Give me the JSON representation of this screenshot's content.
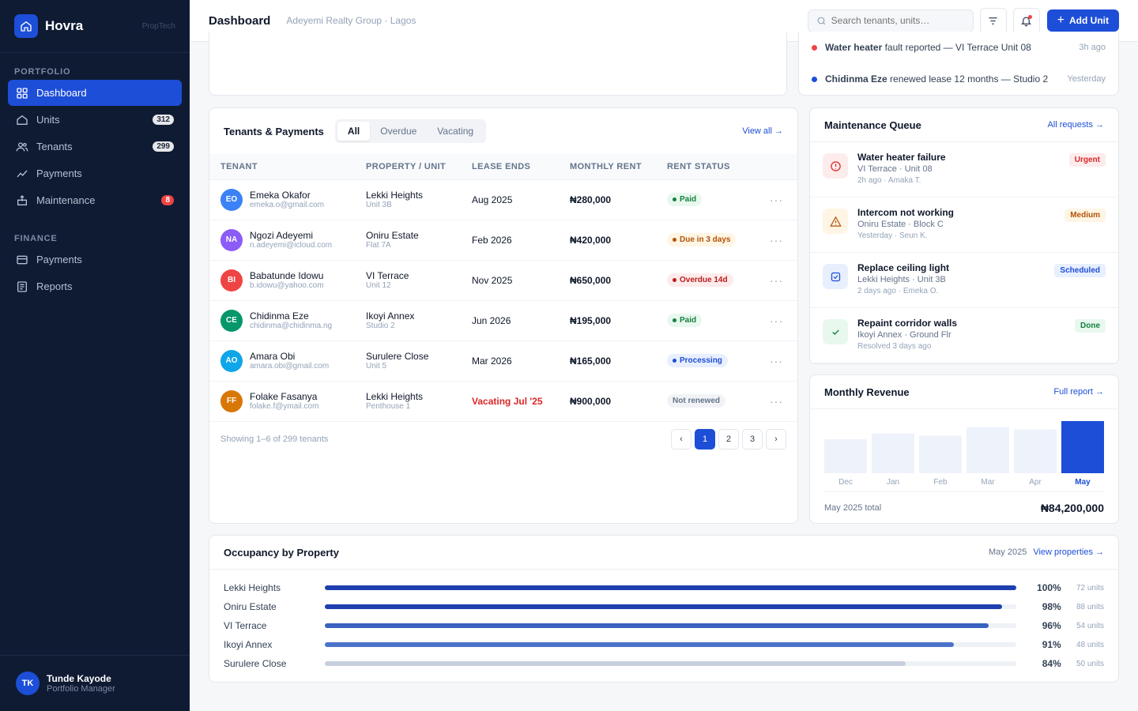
{
  "brand": {
    "name": "Hovra",
    "tag": "PropTech"
  },
  "nav": {
    "portfolio_label": "PORTFOLIO",
    "portfolio": [
      {
        "label": "Dashboard",
        "icon": "grid-icon",
        "badge": ""
      },
      {
        "label": "Units",
        "icon": "home-icon",
        "badge": "312"
      },
      {
        "label": "Tenants",
        "icon": "users-icon",
        "badge": "299"
      },
      {
        "label": "Payments",
        "icon": "trend-icon",
        "badge": ""
      },
      {
        "label": "Maintenance",
        "icon": "toolbox-icon",
        "badge": "8"
      }
    ],
    "finance_label": "FINANCE",
    "finance": [
      {
        "label": "Payments",
        "icon": "card-icon"
      },
      {
        "label": "Reports",
        "icon": "report-icon"
      }
    ]
  },
  "user": {
    "initials": "TK",
    "name": "Tunde Kayode",
    "role": "Portfolio Manager"
  },
  "header": {
    "title": "Dashboard",
    "subtitle": "Adeyemi Realty Group · Lagos",
    "search_placeholder": "Search tenants, units…",
    "add_label": "Add Unit"
  },
  "activity": [
    {
      "bold": "Water heater",
      "text": " fault reported — VI Terrace Unit 08",
      "time": "3h ago",
      "color": "#ef4444"
    },
    {
      "bold": "Chidinma Eze",
      "text": " renewed lease 12 months — Studio 2",
      "time": "Yesterday",
      "color": "#1d4ed8"
    }
  ],
  "tenants": {
    "title": "Tenants & Payments",
    "tabs": [
      "All",
      "Overdue",
      "Vacating"
    ],
    "view_all": "View all →",
    "columns": [
      "TENANT",
      "PROPERTY / UNIT",
      "LEASE ENDS",
      "MONTHLY RENT",
      "RENT STATUS"
    ],
    "rows": [
      {
        "initials": "EO",
        "color": "#3b82f6",
        "name": "Emeka Okafor",
        "email": "emeka.o@gmail.com",
        "property": "Lekki Heights",
        "unit": "Unit 3B",
        "lease": "Aug 2025",
        "rent": "₦280,000",
        "status": "Paid",
        "status_type": "paid"
      },
      {
        "initials": "NA",
        "color": "#8b5cf6",
        "name": "Ngozi Adeyemi",
        "email": "n.adeyemi@icloud.com",
        "property": "Oniru Estate",
        "unit": "Flat 7A",
        "lease": "Feb 2026",
        "rent": "₦420,000",
        "status": "Due in 3 days",
        "status_type": "due"
      },
      {
        "initials": "BI",
        "color": "#ef4444",
        "name": "Babatunde Idowu",
        "email": "b.idowu@yahoo.com",
        "property": "VI Terrace",
        "unit": "Unit 12",
        "lease": "Nov 2025",
        "rent": "₦650,000",
        "status": "Overdue 14d",
        "status_type": "over"
      },
      {
        "initials": "CE",
        "color": "#059669",
        "name": "Chidinma Eze",
        "email": "chidinma@chidinma.ng",
        "property": "Ikoyi Annex",
        "unit": "Studio 2",
        "lease": "Jun 2026",
        "rent": "₦195,000",
        "status": "Paid",
        "status_type": "paid"
      },
      {
        "initials": "AO",
        "color": "#0ea5e9",
        "name": "Amara Obi",
        "email": "amara.obi@gmail.com",
        "property": "Surulere Close",
        "unit": "Unit 5",
        "lease": "Mar 2026",
        "rent": "₦165,000",
        "status": "Processing",
        "status_type": "proc"
      },
      {
        "initials": "FF",
        "color": "#d97706",
        "name": "Folake Fasanya",
        "email": "folake.f@ymail.com",
        "property": "Lekki Heights",
        "unit": "Penthouse 1",
        "lease": "Vacating Jul '25",
        "rent": "₦900,000",
        "status": "Not renewed",
        "status_type": "not"
      }
    ],
    "showing": "Showing 1–6 of 299 tenants",
    "pages": [
      "‹",
      "1",
      "2",
      "3",
      "›"
    ]
  },
  "maintenance": {
    "title": "Maintenance Queue",
    "link": "All requests →",
    "items": [
      {
        "title": "Water heater failure",
        "sub": "VI Terrace · Unit 08",
        "meta": "2h ago · Amaka T.",
        "badge": "Urgent",
        "icon": "alert-circle-icon",
        "fg": "#dc2626",
        "bg": "#fdecec"
      },
      {
        "title": "Intercom not working",
        "sub": "Oniru Estate · Block C",
        "meta": "Yesterday · Seun K.",
        "badge": "Medium",
        "icon": "warning-icon",
        "fg": "#b45309",
        "bg": "#fef5e4"
      },
      {
        "title": "Replace ceiling light",
        "sub": "Lekki Heights · Unit 3B",
        "meta": "2 days ago · Emeka O.",
        "badge": "Scheduled",
        "icon": "check-square-icon",
        "fg": "#1d4ed8",
        "bg": "#e8effe"
      },
      {
        "title": "Repaint corridor walls",
        "sub": "Ikoyi Annex · Ground Flr",
        "meta": "Resolved 3 days ago",
        "badge": "Done",
        "icon": "check-icon",
        "fg": "#15803d",
        "bg": "#e9f8ef"
      }
    ]
  },
  "revenue": {
    "title": "Monthly Revenue",
    "link": "Full report →",
    "total_label": "May 2025 total",
    "total_value": "₦84,200,000"
  },
  "chart_data": {
    "type": "bar",
    "categories": [
      "Dec",
      "Jan",
      "Feb",
      "Mar",
      "Apr",
      "May"
    ],
    "values": [
      0.65,
      0.76,
      0.72,
      0.88,
      0.84,
      1.0
    ],
    "highlight": "May",
    "colors": {
      "base": "#eef2fb",
      "highlight": "#1d4ed8"
    }
  },
  "occupancy": {
    "title": "Occupancy by Property",
    "period": "May 2025",
    "link": "View properties →",
    "rows": [
      {
        "name": "Lekki Heights",
        "pct": 100,
        "label": "100%",
        "units": "72 units",
        "color": "#1e40af"
      },
      {
        "name": "Oniru Estate",
        "pct": 98,
        "label": "98%",
        "units": "88 units",
        "color": "#1e40af"
      },
      {
        "name": "VI Terrace",
        "pct": 96,
        "label": "96%",
        "units": "54 units",
        "color": "#3a62bf"
      },
      {
        "name": "Ikoyi Annex",
        "pct": 91,
        "label": "91%",
        "units": "48 units",
        "color": "#4b73c9"
      },
      {
        "name": "Surulere Close",
        "pct": 84,
        "label": "84%",
        "units": "50 units",
        "color": "#c7cfdd"
      }
    ]
  }
}
